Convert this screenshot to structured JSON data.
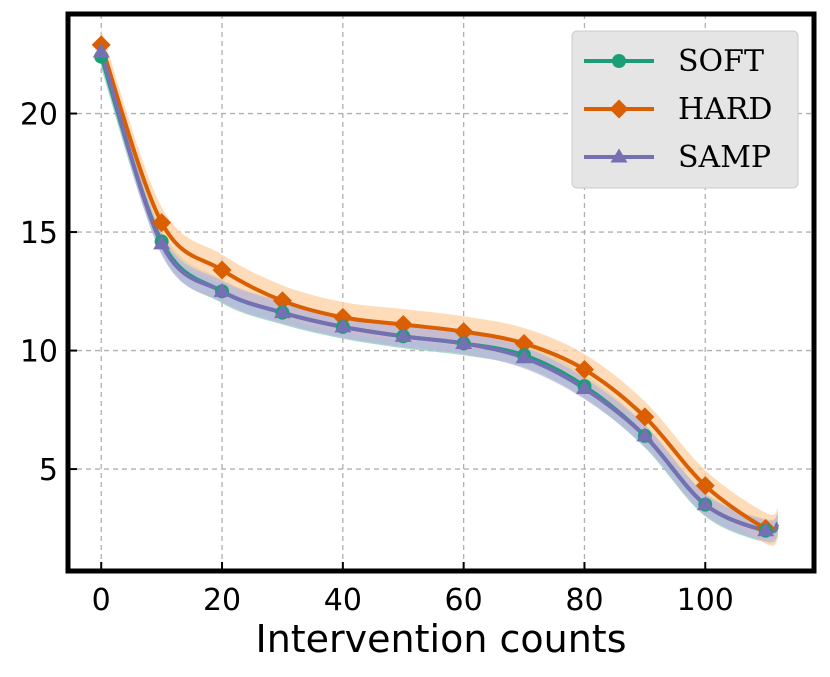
{
  "chart_data": {
    "type": "line",
    "title": "",
    "xlabel": "Intervention counts",
    "ylabel": "",
    "xlim": [
      -5.5,
      118
    ],
    "ylim": [
      0.7,
      24.2
    ],
    "xticks": [
      0,
      20,
      40,
      60,
      80,
      100
    ],
    "yticks": [
      5,
      10,
      15,
      20
    ],
    "grid": true,
    "legend_position": "top-right",
    "colors": {
      "SOFT": "#1b9e77",
      "HARD": "#d95f02",
      "SAMP": "#7570b3",
      "SOFT_band": "#8fcdb5",
      "HARD_band": "#fdd0a2",
      "SAMP_band": "#b9b6dc",
      "grid": "#b0b0b0",
      "legend_bg": "#e5e5e5"
    },
    "series": [
      {
        "name": "SOFT",
        "marker": "circle",
        "x": [
          0,
          10,
          20,
          30,
          40,
          50,
          60,
          70,
          80,
          90,
          100,
          110,
          112
        ],
        "values": [
          22.4,
          14.6,
          12.5,
          11.6,
          11.0,
          10.6,
          10.3,
          9.8,
          8.5,
          6.4,
          3.5,
          2.4,
          2.6
        ],
        "band": 0.5
      },
      {
        "name": "HARD",
        "marker": "diamond",
        "x": [
          0,
          10,
          20,
          30,
          40,
          50,
          60,
          70,
          80,
          90,
          100,
          110,
          112
        ],
        "values": [
          22.9,
          15.4,
          13.4,
          12.1,
          11.4,
          11.1,
          10.8,
          10.3,
          9.2,
          7.2,
          4.3,
          2.5,
          2.7
        ],
        "band": 0.65
      },
      {
        "name": "SAMP",
        "marker": "triangle",
        "x": [
          0,
          10,
          20,
          30,
          40,
          50,
          60,
          70,
          80,
          90,
          100,
          110,
          112
        ],
        "values": [
          22.6,
          14.5,
          12.5,
          11.6,
          11.0,
          10.6,
          10.3,
          9.7,
          8.4,
          6.4,
          3.5,
          2.4,
          2.7
        ],
        "band": 0.45
      }
    ]
  }
}
